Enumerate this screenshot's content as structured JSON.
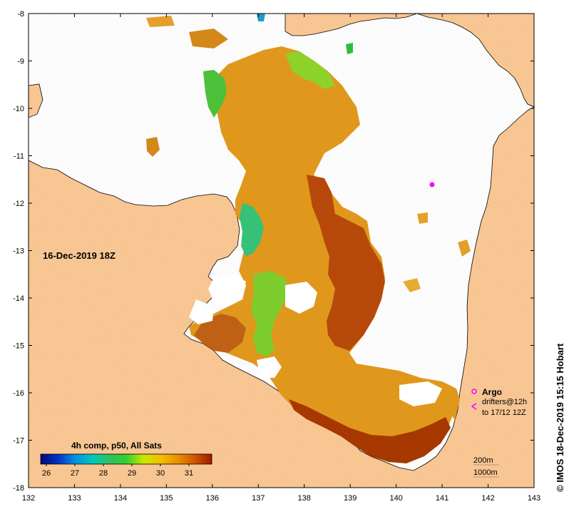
{
  "credit": "© IMOS 18-Dec-2019 15:15 Hobart",
  "date_label": "16-Dec-2019 18Z",
  "colorbar": {
    "title": "4h comp, p50, All Sats",
    "ticks": [
      "26",
      "27",
      "28",
      "29",
      "30",
      "31"
    ],
    "range": [
      25.8,
      31.8
    ],
    "colors": [
      "#000a78",
      "#0030c0",
      "#0090e0",
      "#00c8c0",
      "#30c060",
      "#30d030",
      "#c8e800",
      "#f0c000",
      "#e89000",
      "#d05800",
      "#a01800"
    ]
  },
  "axes": {
    "lon_ticks": [
      "132",
      "133",
      "134",
      "135",
      "136",
      "137",
      "138",
      "139",
      "140",
      "141",
      "142",
      "143"
    ],
    "lat_ticks": [
      "-8",
      "-9",
      "-10",
      "-11",
      "-12",
      "-13",
      "-14",
      "-15",
      "-16",
      "-17",
      "-18"
    ],
    "lon_range": [
      132,
      143
    ],
    "lat_range": [
      -18,
      -8
    ]
  },
  "legend": {
    "argo": "Argo",
    "drifters_line1": "drifters@12h",
    "drifters_line2": "to 17/12 12Z"
  },
  "scale_labels": {
    "depth_200": "200m",
    "depth_1000": "1000m"
  },
  "colors": {
    "land": "#fbc995",
    "ocean_no_data": "#ffffff",
    "sst_warm": "#e8a020",
    "sst_hot": "#b83a00",
    "sst_cool": "#40c040",
    "marker": "#ff00ff"
  }
}
